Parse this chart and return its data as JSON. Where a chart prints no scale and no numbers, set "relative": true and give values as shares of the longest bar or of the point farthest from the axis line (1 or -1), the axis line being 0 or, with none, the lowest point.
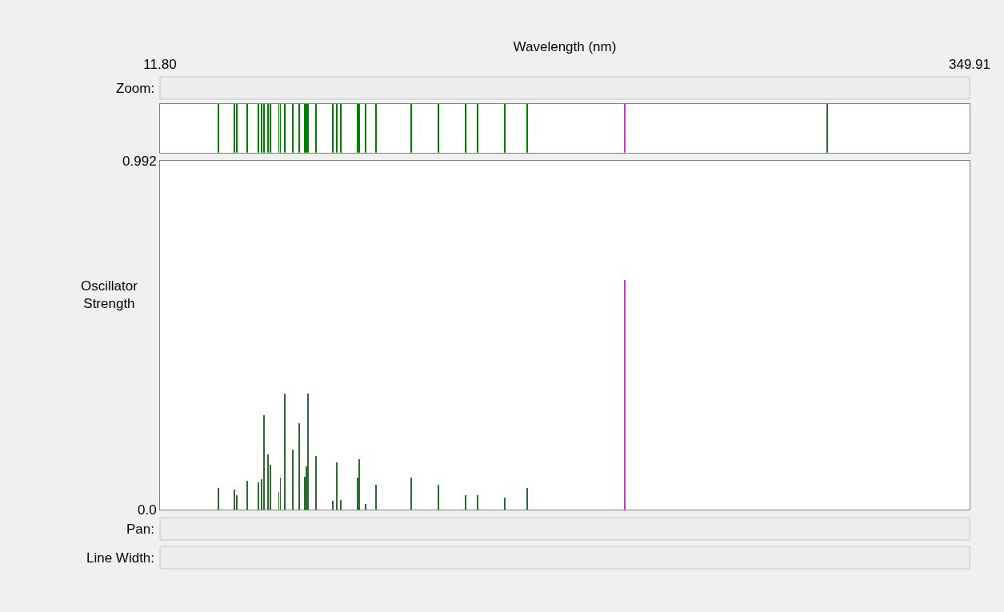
{
  "chart_data": [
    {
      "type": "bar",
      "relative": true,
      "xlabel": "Wavelength (nm)",
      "xlim": [
        11.8,
        349.91
      ],
      "xticks": [
        {
          "value": 11.8,
          "label": "11.80"
        },
        349.91
      ],
      "tick_labels": "x",
      "x": [
        36.3,
        43.0,
        43.9,
        48.3,
        52.8,
        54.1,
        55.2,
        56.9,
        58.0,
        61.4,
        62.1,
        63.9,
        67.3,
        69.9,
        72.2,
        72.8,
        73.6,
        76.9,
        84.0,
        85.5,
        87.3,
        94.2,
        95.1,
        97.8,
        102.0,
        116.7,
        128.0,
        139.3,
        144.5,
        155.7,
        165.2,
        205.9,
        290.4
      ],
      "values": [
        1,
        1,
        1,
        1,
        1,
        1,
        1,
        1,
        1,
        1,
        1,
        1,
        1,
        1,
        1,
        1,
        1,
        1,
        1,
        1,
        1,
        1,
        1,
        1,
        1,
        1,
        1,
        1,
        1,
        1,
        1,
        1,
        1
      ],
      "colors": [
        "#008000",
        "#008000",
        "#008000",
        "#008000",
        "#008000",
        "#008000",
        "#008000",
        "#008000",
        "#008000",
        "#008000",
        "#008000",
        "#008000",
        "#008000",
        "#008000",
        "#008000",
        "#008000",
        "#008000",
        "#008000",
        "#008000",
        "#008000",
        "#008000",
        "#008000",
        "#008000",
        "#008000",
        "#008000",
        "#008000",
        "#008000",
        "#008000",
        "#008000",
        "#008000",
        "#008000",
        "#cc33cc",
        "#2e6b2e"
      ],
      "annotations": [
        "Zoom:"
      ]
    },
    {
      "type": "bar",
      "ylabel": "Oscillator Strength",
      "xlim": [
        11.8,
        349.91
      ],
      "ylim": [
        0,
        0.992
      ],
      "yticks": [
        {
          "value": 0,
          "label": "0.0"
        },
        0.992
      ],
      "tick_labels": "y",
      "x": [
        36.3,
        43.0,
        43.9,
        48.3,
        52.8,
        54.1,
        55.2,
        56.9,
        58.0,
        61.4,
        62.1,
        63.9,
        67.3,
        69.9,
        72.2,
        72.8,
        73.6,
        76.9,
        84.0,
        85.5,
        87.3,
        94.2,
        95.1,
        97.8,
        102.0,
        116.7,
        128.0,
        139.3,
        144.5,
        155.7,
        165.2,
        205.9
      ],
      "values": [
        0.061,
        0.058,
        0.041,
        0.082,
        0.077,
        0.087,
        0.268,
        0.156,
        0.127,
        0.051,
        0.091,
        0.329,
        0.17,
        0.245,
        0.094,
        0.124,
        0.329,
        0.153,
        0.025,
        0.134,
        0.028,
        0.091,
        0.143,
        0.015,
        0.071,
        0.091,
        0.071,
        0.041,
        0.041,
        0.035,
        0.061,
        0.653
      ],
      "colors": [
        "#2e6b2e",
        "#2e6b2e",
        "#2e6b2e",
        "#2e6b2e",
        "#2e6b2e",
        "#2e6b2e",
        "#2e6b2e",
        "#2e6b2e",
        "#2e6b2e",
        "#2e6b2e",
        "#2e6b2e",
        "#2e6b2e",
        "#2e6b2e",
        "#2e6b2e",
        "#2e6b2e",
        "#2e6b2e",
        "#2e6b2e",
        "#2e6b2e",
        "#2e6b2e",
        "#2e6b2e",
        "#2e6b2e",
        "#2e6b2e",
        "#2e6b2e",
        "#2e6b2e",
        "#2e6b2e",
        "#2e6b2e",
        "#2e6b2e",
        "#2e6b2e",
        "#2e6b2e",
        "#2e6b2e",
        "#2e6b2e",
        "#cc33cc"
      ],
      "annotations": [
        "Pan:",
        "Line Width:"
      ]
    }
  ]
}
